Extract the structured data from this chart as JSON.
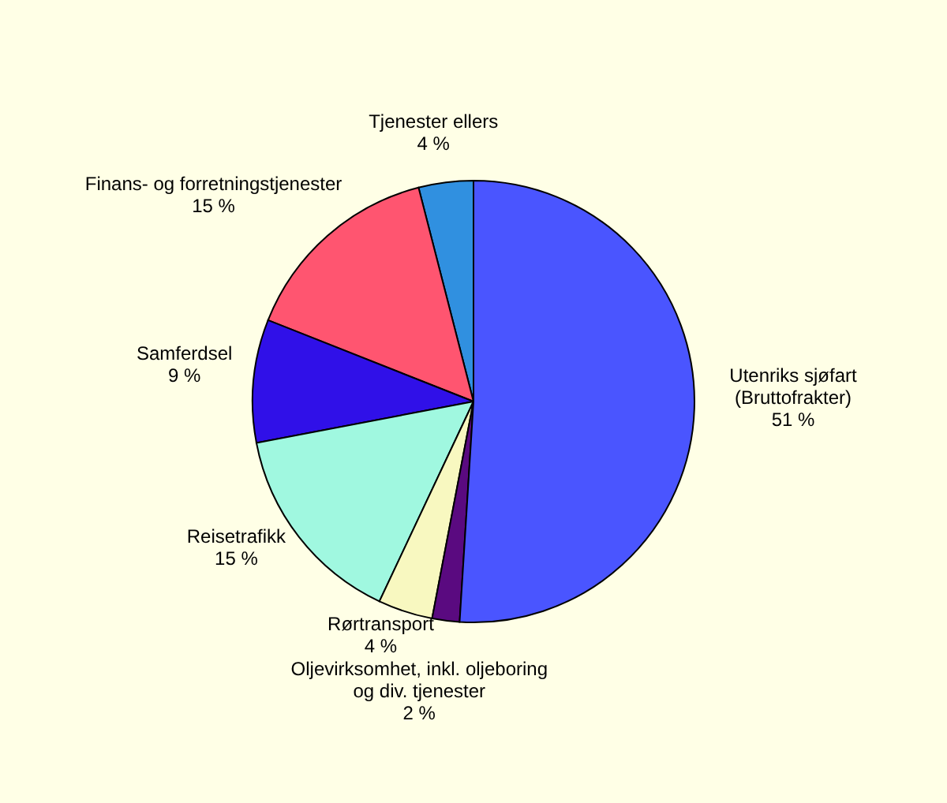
{
  "chart_data": {
    "type": "pie",
    "categories": [
      "Utenriks sjøfart\n(Bruttofrakter)",
      "Oljevirksomhet, inkl. oljeboring\nog div. tjenester",
      "Rørtransport",
      "Reisetrafikk",
      "Samferdsel",
      "Finans- og forretningstjenester",
      "Tjenester ellers"
    ],
    "values": [
      51,
      2,
      4,
      15,
      9,
      15,
      4
    ],
    "value_labels": [
      "51 %",
      "2 %",
      "4 %",
      "15 %",
      "9 %",
      "15 %",
      "4 %"
    ],
    "colors": [
      "#4a55ff",
      "#5a0a80",
      "#f8f8c0",
      "#a0f8e0",
      "#3010e8",
      "#ff5570",
      "#3090e0"
    ]
  }
}
